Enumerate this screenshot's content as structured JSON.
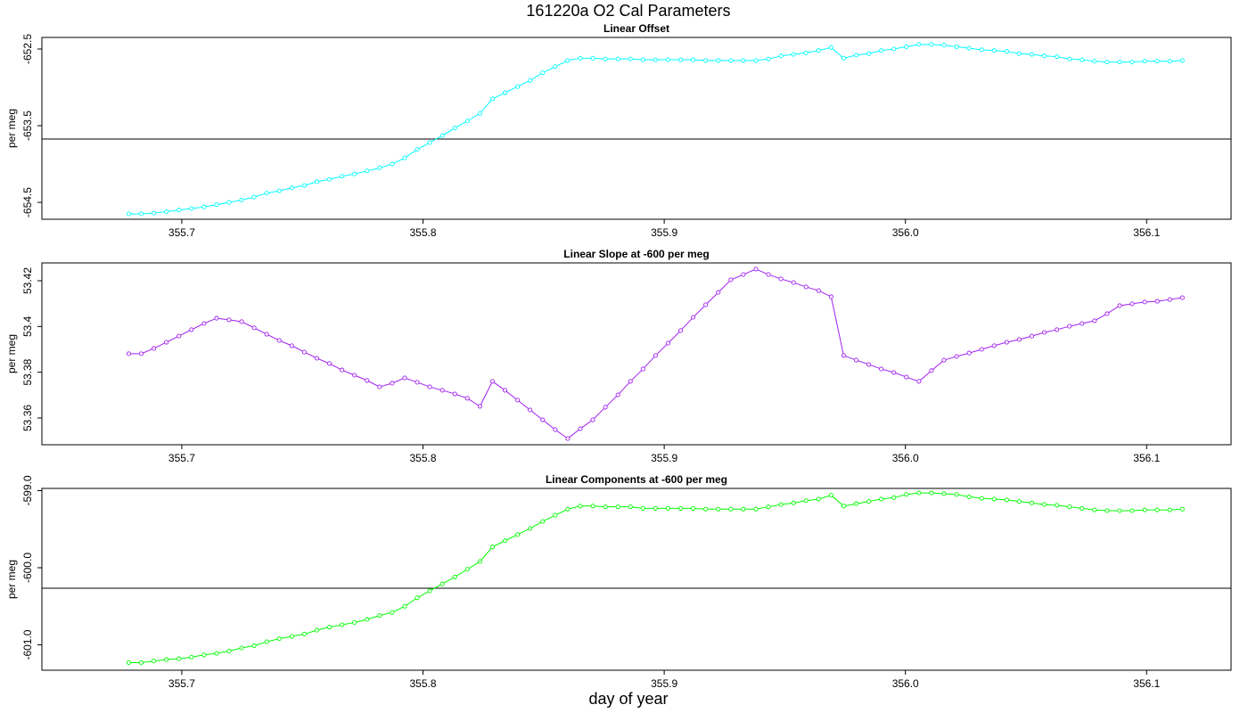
{
  "title": "161220a   O2 Cal Parameters",
  "xlabel": "day of year",
  "xlim": [
    355.642,
    356.135
  ],
  "xticks": [
    355.7,
    355.8,
    355.9,
    {
      "value": 356.0,
      "label": "356.0"
    },
    356.1
  ],
  "x": [
    355.678,
    355.6832,
    355.6884,
    355.6936,
    355.6988,
    355.704,
    355.7092,
    355.7144,
    355.7196,
    355.7248,
    355.73,
    355.7352,
    355.7404,
    355.7456,
    355.7508,
    355.756,
    355.7612,
    355.7664,
    355.7716,
    355.7768,
    355.782,
    355.7872,
    355.7924,
    355.7976,
    355.8028,
    355.808,
    355.8132,
    355.8184,
    355.8236,
    355.8288,
    355.834,
    355.8392,
    355.8444,
    355.8496,
    355.8548,
    355.86,
    355.8652,
    355.8704,
    355.8756,
    355.8808,
    355.886,
    355.8912,
    355.8964,
    355.9016,
    355.9068,
    355.912,
    355.9172,
    355.9224,
    355.9276,
    355.9328,
    355.938,
    355.9432,
    355.9484,
    355.9536,
    355.9588,
    355.964,
    355.9692,
    355.9744,
    355.9796,
    355.9848,
    355.99,
    355.9952,
    356.0004,
    356.0056,
    356.0108,
    356.016,
    356.0212,
    356.0264,
    356.0316,
    356.0368,
    356.042,
    356.0472,
    356.0524,
    356.0576,
    356.0628,
    356.068,
    356.0732,
    356.0784,
    356.0836,
    356.0888,
    356.094,
    356.0992,
    356.1044,
    356.1096,
    356.1148
  ],
  "chart_data": [
    {
      "type": "line",
      "title": "Linear Offset",
      "ylabel": "per meg",
      "color": "#00ffff",
      "ylim": [
        -654.72,
        -652.349
      ],
      "yticks": [
        -652.5,
        -653.5,
        -654.5
      ],
      "hline": -653.674,
      "values": [
        -654.65,
        -654.65,
        -654.64,
        -654.62,
        -654.6,
        -654.58,
        -654.56,
        -654.53,
        -654.5,
        -654.47,
        -654.43,
        -654.38,
        -654.35,
        -654.31,
        -654.28,
        -654.23,
        -654.2,
        -654.16,
        -654.13,
        -654.09,
        -654.05,
        -654.0,
        -653.92,
        -653.81,
        -653.72,
        -653.63,
        -653.53,
        -653.44,
        -653.34,
        -653.15,
        -653.07,
        -652.99,
        -652.91,
        -652.81,
        -652.73,
        -652.65,
        -652.62,
        -652.62,
        -652.63,
        -652.63,
        -652.63,
        -652.64,
        -652.64,
        -652.64,
        -652.64,
        -652.64,
        -652.65,
        -652.65,
        -652.65,
        -652.65,
        -652.65,
        -652.63,
        -652.59,
        -652.57,
        -652.55,
        -652.52,
        -652.48,
        -652.62,
        -652.58,
        -652.56,
        -652.52,
        -652.5,
        -652.47,
        -652.44,
        -652.44,
        -652.45,
        -652.47,
        -652.49,
        -652.51,
        -652.52,
        -652.53,
        -652.56,
        -652.57,
        -652.59,
        -652.6,
        -652.63,
        -652.64,
        -652.66,
        -652.67,
        -652.67,
        -652.67,
        -652.66,
        -652.66,
        -652.66,
        -652.65
      ]
    },
    {
      "type": "line",
      "title": "Linear Slope at -600 per meg",
      "ylabel": "per meg",
      "color": "#a020f0",
      "ylim": [
        53.3483,
        53.4278
      ],
      "yticks": [
        53.36,
        53.38,
        53.4,
        53.42
      ],
      "values": [
        53.3881,
        53.3881,
        53.3904,
        53.3931,
        53.3958,
        53.3986,
        53.4013,
        53.4036,
        53.4029,
        53.4021,
        53.3994,
        53.3966,
        53.3939,
        53.3916,
        53.3888,
        53.3861,
        53.3838,
        53.381,
        53.3787,
        53.3764,
        53.3736,
        53.3752,
        53.3775,
        53.3756,
        53.3736,
        53.3721,
        53.3705,
        53.3686,
        53.3651,
        53.376,
        53.3721,
        53.3678,
        53.3635,
        53.3592,
        53.3549,
        53.351,
        53.3553,
        53.3592,
        53.3647,
        53.3701,
        53.376,
        53.3814,
        53.3873,
        53.3927,
        53.3982,
        53.404,
        53.4095,
        53.4149,
        53.4204,
        53.4227,
        53.4251,
        53.4227,
        53.4208,
        53.4192,
        53.4173,
        53.4157,
        53.413,
        53.3873,
        53.3853,
        53.3834,
        53.3814,
        53.3799,
        53.3779,
        53.376,
        53.3807,
        53.3853,
        53.3869,
        53.3884,
        53.39,
        53.3916,
        53.3931,
        53.3943,
        53.3958,
        53.3974,
        53.3986,
        53.4001,
        53.4013,
        53.4025,
        53.4056,
        53.4091,
        53.4099,
        53.4107,
        53.411,
        53.4118,
        53.4126
      ]
    },
    {
      "type": "line",
      "title": "Linear Components at -600 per meg",
      "ylabel": "per meg",
      "color": "#00ff00",
      "ylim": [
        -601.329,
        -598.971
      ],
      "yticks": [
        {
          "value": -599,
          "label": "-599.0"
        },
        {
          "value": -600,
          "label": "-600.0"
        },
        {
          "value": -601,
          "label": "-601.0"
        }
      ],
      "hline": -600.266,
      "values": [
        -601.23,
        -601.23,
        -601.21,
        -601.19,
        -601.18,
        -601.16,
        -601.13,
        -601.11,
        -601.08,
        -601.04,
        -601.01,
        -600.96,
        -600.92,
        -600.89,
        -600.86,
        -600.81,
        -600.77,
        -600.74,
        -600.71,
        -600.67,
        -600.62,
        -600.58,
        -600.5,
        -600.39,
        -600.3,
        -600.21,
        -600.12,
        -600.02,
        -599.92,
        -599.73,
        -599.65,
        -599.57,
        -599.49,
        -599.4,
        -599.32,
        -599.24,
        -599.2,
        -599.2,
        -599.21,
        -599.21,
        -599.21,
        -599.23,
        -599.23,
        -599.23,
        -599.23,
        -599.23,
        -599.24,
        -599.24,
        -599.24,
        -599.24,
        -599.24,
        -599.21,
        -599.18,
        -599.16,
        -599.13,
        -599.11,
        -599.06,
        -599.2,
        -599.17,
        -599.14,
        -599.11,
        -599.09,
        -599.05,
        -599.03,
        -599.03,
        -599.04,
        -599.05,
        -599.08,
        -599.1,
        -599.11,
        -599.12,
        -599.14,
        -599.16,
        -599.18,
        -599.19,
        -599.21,
        -599.23,
        -599.25,
        -599.26,
        -599.26,
        -599.26,
        -599.25,
        -599.25,
        -599.25,
        -599.24
      ]
    }
  ]
}
